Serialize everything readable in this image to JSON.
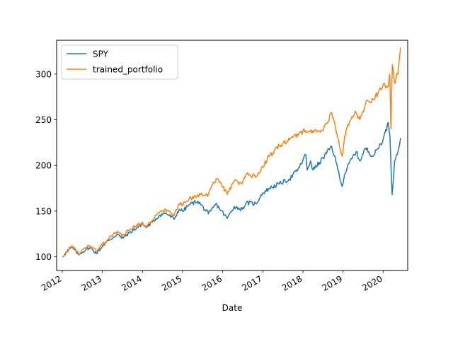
{
  "chart_data": {
    "type": "line",
    "title": "",
    "xlabel": "Date",
    "ylabel": "",
    "xlim": [
      "2011-11-11",
      "2020-08-12"
    ],
    "ylim": [
      85,
      337
    ],
    "x_ticks": [
      "2012",
      "2013",
      "2014",
      "2015",
      "2016",
      "2017",
      "2018",
      "2019",
      "2020"
    ],
    "y_ticks": [
      100,
      150,
      200,
      250,
      300
    ],
    "grid": false,
    "legend_position": "upper left",
    "series": [
      {
        "name": "SPY",
        "color": "#1f77b4",
        "x": [
          "2012-01-03",
          "2012-03-01",
          "2012-04-01",
          "2012-06-01",
          "2012-06-15",
          "2012-09-01",
          "2012-11-15",
          "2013-01-01",
          "2013-03-01",
          "2013-05-20",
          "2013-06-24",
          "2013-09-01",
          "2013-12-31",
          "2014-02-03",
          "2014-04-01",
          "2014-06-01",
          "2014-08-01",
          "2014-10-15",
          "2014-12-01",
          "2015-01-05",
          "2015-03-01",
          "2015-05-20",
          "2015-08-24",
          "2015-09-15",
          "2015-11-01",
          "2016-02-11",
          "2016-04-15",
          "2016-06-27",
          "2016-08-01",
          "2016-11-04",
          "2016-12-15",
          "2017-03-01",
          "2017-06-01",
          "2017-09-01",
          "2017-12-01",
          "2018-01-26",
          "2018-02-09",
          "2018-03-12",
          "2018-04-02",
          "2018-06-01",
          "2018-09-20",
          "2018-10-29",
          "2018-12-24",
          "2019-01-15",
          "2019-03-01",
          "2019-04-30",
          "2019-06-03",
          "2019-07-26",
          "2019-10-01",
          "2019-12-31",
          "2020-02-19",
          "2020-03-03",
          "2020-03-23",
          "2020-04-15",
          "2020-05-15",
          "2020-06-08"
        ],
        "values": [
          100,
          108,
          110,
          102,
          104,
          110,
          104,
          112,
          118,
          125,
          120,
          126,
          136,
          132,
          138,
          145,
          148,
          141,
          152,
          150,
          157,
          161,
          147,
          150,
          158,
          142,
          155,
          152,
          159,
          158,
          168,
          175,
          180,
          185,
          198,
          212,
          195,
          205,
          195,
          203,
          221,
          204,
          177,
          190,
          203,
          215,
          205,
          219,
          210,
          228,
          247,
          232,
          168,
          205,
          215,
          230
        ]
      },
      {
        "name": "trained_portfolio",
        "color": "#ff7f0e",
        "x": [
          "2012-01-03",
          "2012-03-01",
          "2012-04-01",
          "2012-06-01",
          "2012-06-15",
          "2012-09-01",
          "2012-11-15",
          "2013-01-01",
          "2013-03-01",
          "2013-05-20",
          "2013-06-24",
          "2013-09-01",
          "2013-12-31",
          "2014-02-03",
          "2014-04-01",
          "2014-06-01",
          "2014-08-01",
          "2014-10-15",
          "2014-12-01",
          "2015-01-05",
          "2015-03-01",
          "2015-05-20",
          "2015-08-24",
          "2015-09-15",
          "2015-11-01",
          "2015-12-15",
          "2016-02-11",
          "2016-04-15",
          "2016-06-27",
          "2016-08-01",
          "2016-11-04",
          "2016-12-15",
          "2017-03-01",
          "2017-06-01",
          "2017-09-01",
          "2017-12-01",
          "2018-01-26",
          "2018-02-20",
          "2018-04-01",
          "2018-05-15",
          "2018-07-01",
          "2018-09-20",
          "2018-10-29",
          "2018-12-24",
          "2019-01-15",
          "2019-03-01",
          "2019-04-30",
          "2019-06-03",
          "2019-07-26",
          "2019-10-01",
          "2019-12-31",
          "2020-02-19",
          "2020-03-01",
          "2020-03-12",
          "2020-03-16",
          "2020-03-25",
          "2020-04-15",
          "2020-05-15",
          "2020-06-08"
        ],
        "values": [
          100,
          108,
          112,
          103,
          105,
          112,
          106,
          114,
          120,
          128,
          123,
          129,
          138,
          134,
          140,
          148,
          152,
          145,
          158,
          157,
          163,
          168,
          168,
          175,
          185,
          181,
          168,
          183,
          180,
          190,
          188,
          196,
          210,
          222,
          228,
          236,
          238,
          237,
          238,
          238,
          238,
          258,
          238,
          210,
          232,
          248,
          258,
          250,
          268,
          272,
          288,
          288,
          300,
          240,
          270,
          310,
          290,
          300,
          329
        ]
      }
    ]
  }
}
